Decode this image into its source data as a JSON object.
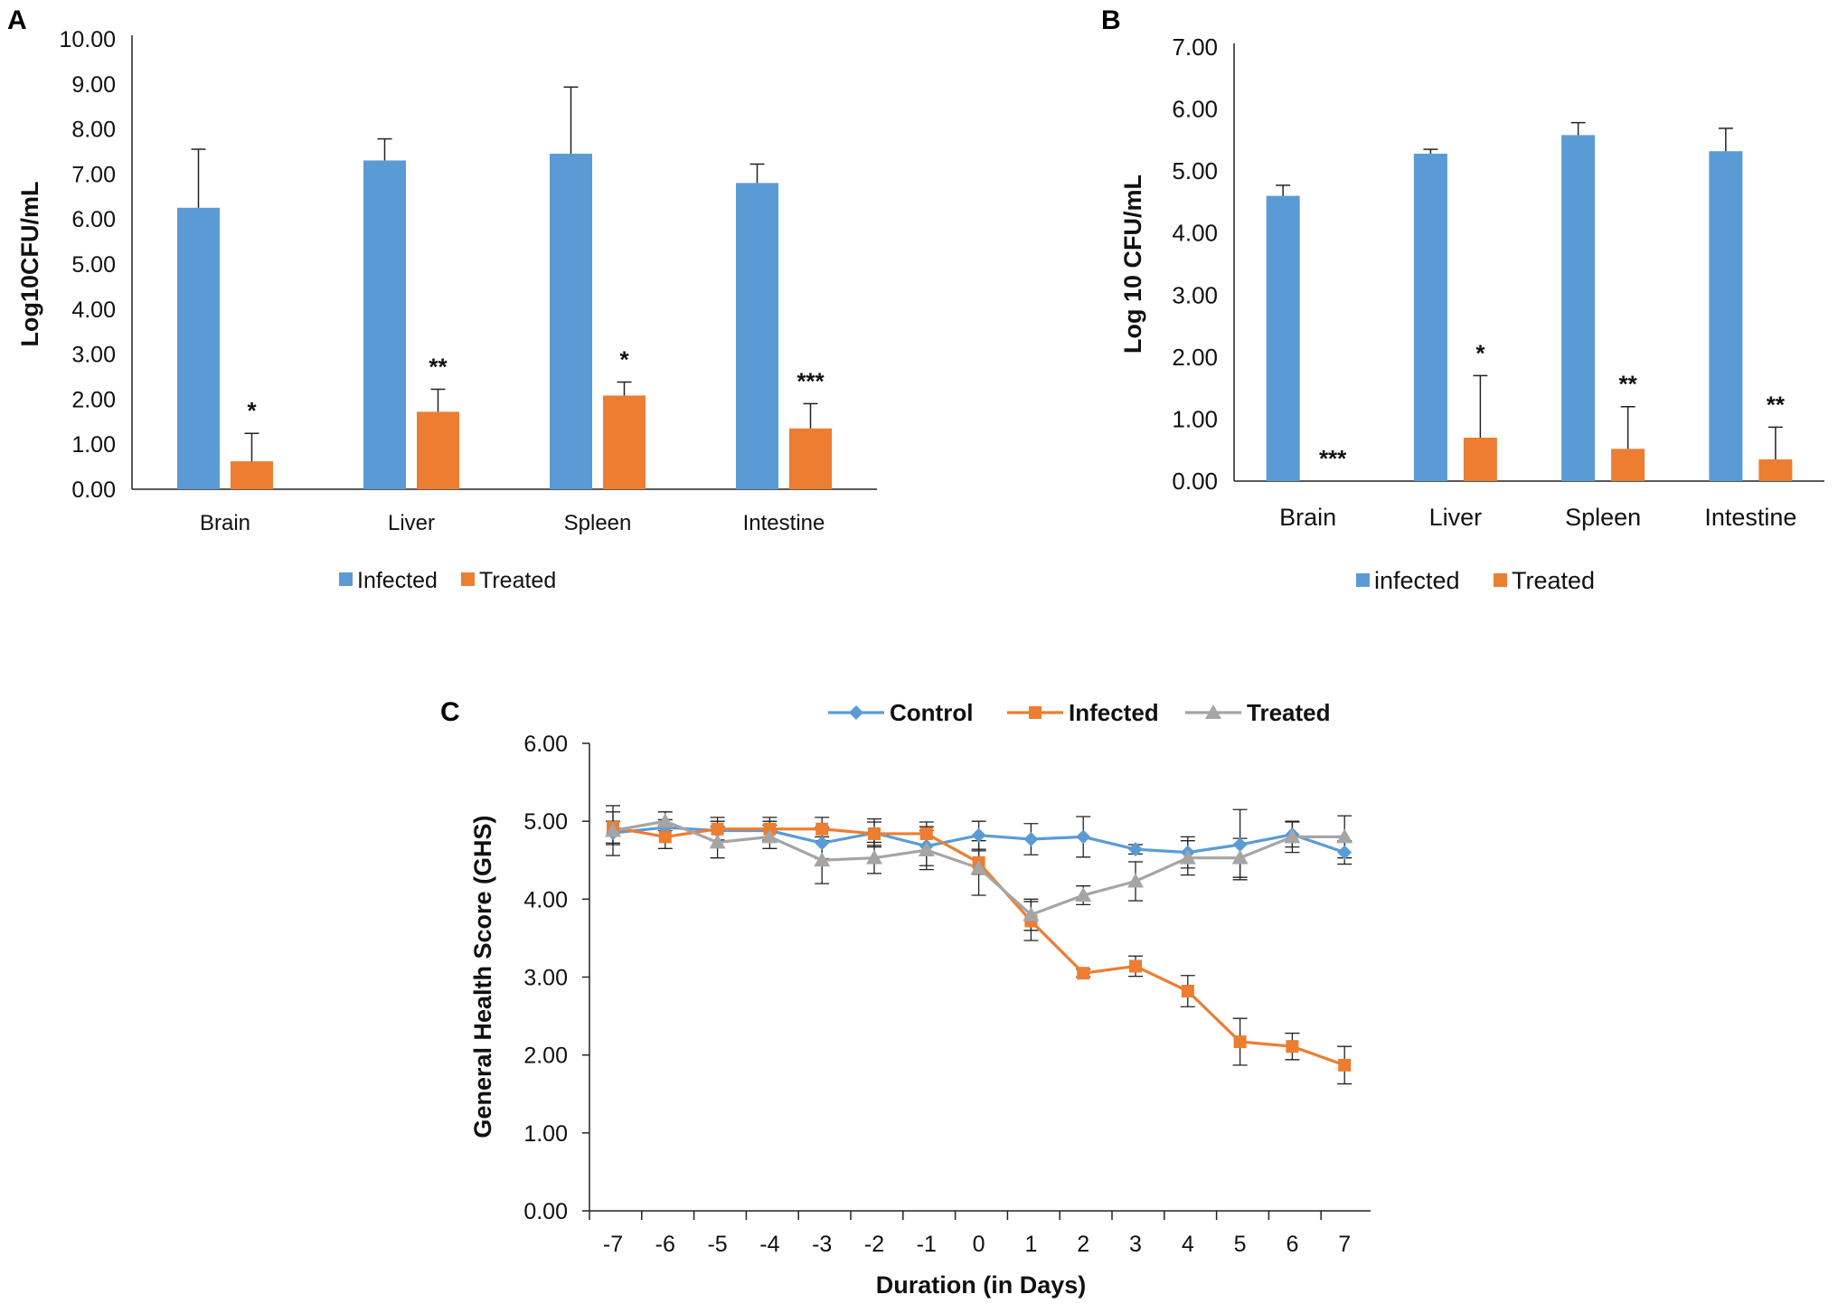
{
  "chart_data": [
    {
      "panel": "A",
      "type": "bar",
      "ylabel": "Log10CFU/mL",
      "ylim": [
        0,
        10
      ],
      "yticks": [
        "0.00",
        "1.00",
        "2.00",
        "3.00",
        "4.00",
        "5.00",
        "6.00",
        "7.00",
        "8.00",
        "9.00",
        "10.00"
      ],
      "categories": [
        "Brain",
        "Liver",
        "Spleen",
        "Intestine"
      ],
      "series": [
        {
          "name": "Infected",
          "color": "#5B9BD5",
          "values": [
            6.25,
            7.3,
            7.45,
            6.8
          ],
          "errors": [
            1.3,
            0.48,
            1.48,
            0.42
          ]
        },
        {
          "name": "Treated",
          "color": "#ED7D31",
          "values": [
            0.62,
            1.72,
            2.08,
            1.35
          ],
          "errors": [
            0.62,
            0.5,
            0.3,
            0.55
          ]
        }
      ],
      "significance": [
        "*",
        "**",
        "*",
        "***"
      ],
      "legend": "bottom"
    },
    {
      "panel": "B",
      "type": "bar",
      "ylabel": "Log 10 CFU/mL",
      "ylim": [
        0,
        7
      ],
      "yticks": [
        "0.00",
        "1.00",
        "2.00",
        "3.00",
        "4.00",
        "5.00",
        "6.00",
        "7.00"
      ],
      "categories": [
        "Brain",
        "Liver",
        "Spleen",
        "Intestine"
      ],
      "series": [
        {
          "name": "infected",
          "color": "#5B9BD5",
          "values": [
            4.6,
            5.28,
            5.58,
            5.32
          ],
          "errors": [
            0.17,
            0.07,
            0.2,
            0.37
          ]
        },
        {
          "name": "Treated",
          "color": "#ED7D31",
          "values": [
            0,
            0.7,
            0.52,
            0.35
          ],
          "errors": [
            0,
            1.0,
            0.68,
            0.52
          ]
        }
      ],
      "significance": [
        "***",
        "*",
        "**",
        "**"
      ],
      "legend": "bottom"
    },
    {
      "panel": "C",
      "type": "line",
      "xlabel": "Duration (in Days)",
      "ylabel": "General Health Score (GHS)",
      "ylim": [
        0,
        6
      ],
      "yticks": [
        "0.00",
        "1.00",
        "2.00",
        "3.00",
        "4.00",
        "5.00",
        "6.00"
      ],
      "x": [
        "-7",
        "-6",
        "-5",
        "-4",
        "-3",
        "-2",
        "-1",
        "0",
        "1",
        "2",
        "3",
        "4",
        "5",
        "6",
        "7"
      ],
      "series": [
        {
          "name": "Control",
          "color": "#5B9BD5",
          "marker": "diamond",
          "values": [
            4.85,
            4.92,
            4.88,
            4.88,
            4.72,
            4.85,
            4.68,
            4.82,
            4.77,
            4.8,
            4.64,
            4.6,
            4.7,
            4.83,
            4.6
          ],
          "errors": [
            0.15,
            0.1,
            0.12,
            0.12,
            0.2,
            0.18,
            0.25,
            0.18,
            0.2,
            0.26,
            0.06,
            0.2,
            0.45,
            0.16,
            0.15
          ]
        },
        {
          "name": "Infected",
          "color": "#ED7D31",
          "marker": "square",
          "values": [
            4.92,
            4.8,
            4.9,
            4.9,
            4.9,
            4.84,
            4.84,
            4.47,
            3.72,
            3.05,
            3.14,
            2.82,
            2.17,
            2.11,
            1.87
          ],
          "errors": [
            0.2,
            0.15,
            0.15,
            0.15,
            0.15,
            0.15,
            0.15,
            0.15,
            0.25,
            0.05,
            0.13,
            0.2,
            0.3,
            0.17,
            0.24
          ]
        },
        {
          "name": "Treated",
          "color": "#A5A5A5",
          "marker": "triangle",
          "values": [
            4.88,
            5.0,
            4.73,
            4.8,
            4.5,
            4.53,
            4.63,
            4.4,
            3.8,
            4.05,
            4.23,
            4.53,
            4.53,
            4.8,
            4.8
          ],
          "errors": [
            0.32,
            0.12,
            0.2,
            0.15,
            0.3,
            0.2,
            0.25,
            0.35,
            0.2,
            0.12,
            0.25,
            0.22,
            0.25,
            0.2,
            0.27
          ]
        }
      ],
      "legend": "top"
    }
  ]
}
